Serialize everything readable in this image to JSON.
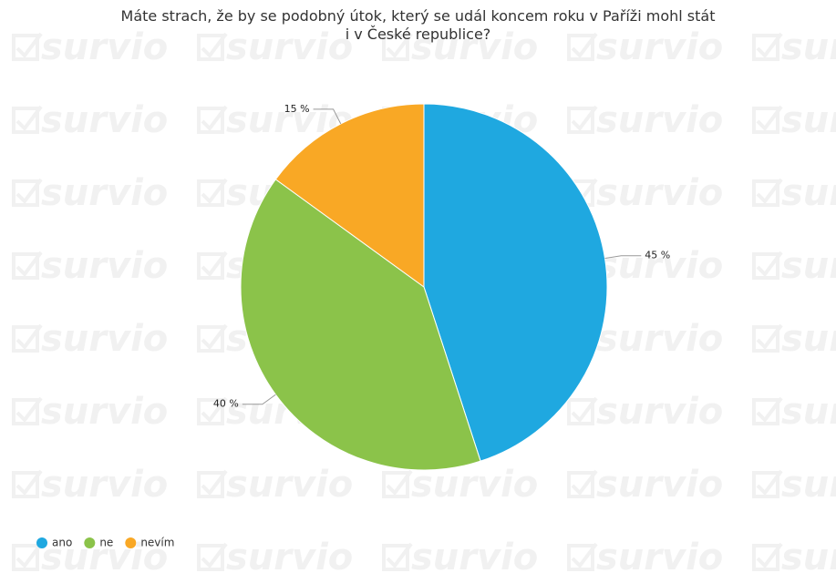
{
  "chart_data": {
    "type": "pie",
    "title": "Máte strach, že by se podobný útok, který se udál koncem roku v Paříži mohl stát\ni v České republice?",
    "watermark": "survio",
    "categories": [
      "ano",
      "ne",
      "nevím"
    ],
    "values": [
      45,
      40,
      15
    ],
    "value_labels": [
      "45 %",
      "40 %",
      "15 %"
    ],
    "colors": [
      "#1fa8e0",
      "#8bc34a",
      "#f9a825"
    ],
    "legend": "bottom-left"
  }
}
